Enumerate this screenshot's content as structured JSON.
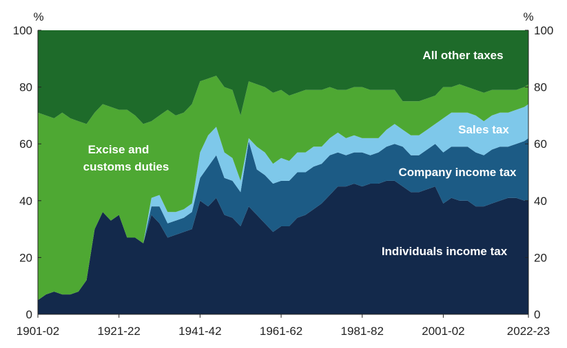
{
  "chart_data": {
    "type": "area",
    "stacked": true,
    "percent_stacked": true,
    "y_unit_left": "%",
    "y_unit_right": "%",
    "ylim": [
      0,
      100
    ],
    "y_ticks": [
      0,
      20,
      40,
      60,
      80,
      100
    ],
    "x_tick_labels": [
      "1901-02",
      "1921-22",
      "1941-42",
      "1961-62",
      "1981-82",
      "2001-02",
      "2022-23"
    ],
    "x_tick_years": [
      1901,
      1921,
      1941,
      1961,
      1981,
      2001,
      2022
    ],
    "x_range": [
      1901,
      2022
    ],
    "x": [
      1901,
      1903,
      1905,
      1907,
      1909,
      1911,
      1913,
      1915,
      1917,
      1919,
      1921,
      1923,
      1925,
      1927,
      1929,
      1931,
      1933,
      1935,
      1937,
      1939,
      1941,
      1943,
      1945,
      1947,
      1949,
      1951,
      1953,
      1955,
      1957,
      1959,
      1961,
      1963,
      1965,
      1967,
      1969,
      1971,
      1973,
      1975,
      1977,
      1979,
      1981,
      1983,
      1985,
      1987,
      1989,
      1991,
      1993,
      1995,
      1997,
      1999,
      2001,
      2003,
      2005,
      2007,
      2009,
      2011,
      2013,
      2015,
      2017,
      2019,
      2021,
      2022
    ],
    "series": [
      {
        "name": "Individuals income tax",
        "color": "#13294b",
        "values": [
          5,
          7,
          8,
          7,
          7,
          8,
          12,
          30,
          36,
          33,
          35,
          27,
          27,
          25,
          35,
          32,
          27,
          28,
          29,
          30,
          40,
          38,
          41,
          35,
          34,
          31,
          38,
          35,
          32,
          29,
          31,
          31,
          34,
          35,
          37,
          39,
          42,
          45,
          45,
          46,
          45,
          46,
          46,
          47,
          47,
          45,
          43,
          43,
          44,
          45,
          39,
          41,
          40,
          40,
          38,
          38,
          39,
          40,
          41,
          41,
          40,
          40
        ]
      },
      {
        "name": "Company income tax",
        "values": [
          0,
          0,
          0,
          0,
          0,
          0,
          0,
          0,
          0,
          0,
          0,
          0,
          0,
          0,
          3,
          6,
          5,
          5,
          5,
          6,
          8,
          14,
          15,
          13,
          13,
          12,
          23,
          16,
          17,
          17,
          16,
          16,
          16,
          15,
          15,
          14,
          14,
          12,
          11,
          11,
          12,
          10,
          11,
          12,
          13,
          14,
          13,
          13,
          14,
          15,
          18,
          18,
          19,
          19,
          19,
          18,
          19,
          19,
          18,
          19,
          21,
          22
        ],
        "color": "#1c5b85"
      },
      {
        "name": "Sales tax",
        "values": [
          0,
          0,
          0,
          0,
          0,
          0,
          0,
          0,
          0,
          0,
          0,
          0,
          0,
          0,
          3,
          4,
          4,
          3,
          3,
          3,
          9,
          11,
          10,
          9,
          8,
          4,
          1,
          8,
          8,
          7,
          8,
          7,
          7,
          7,
          7,
          6,
          6,
          7,
          6,
          6,
          5,
          6,
          5,
          6,
          7,
          6,
          7,
          7,
          7,
          7,
          12,
          12,
          12,
          12,
          13,
          12,
          12,
          12,
          12,
          12,
          12,
          12
        ],
        "color": "#7ec8ea"
      },
      {
        "name": "Excise and customs duties",
        "color": "#4ea833",
        "values": [
          66,
          63,
          61,
          64,
          62,
          60,
          55,
          41,
          38,
          40,
          37,
          45,
          43,
          42,
          27,
          28,
          36,
          34,
          34,
          35,
          25,
          20,
          18,
          23,
          24,
          23,
          20,
          22,
          23,
          25,
          24,
          23,
          21,
          22,
          20,
          20,
          18,
          15,
          17,
          17,
          18,
          17,
          17,
          14,
          12,
          10,
          12,
          12,
          11,
          10,
          11,
          9,
          10,
          9,
          9,
          10,
          9,
          8,
          8,
          7,
          7,
          7
        ]
      },
      {
        "name": "All other taxes",
        "color": "#1e6b2a",
        "values": [
          29,
          30,
          31,
          29,
          31,
          32,
          33,
          29,
          26,
          27,
          28,
          28,
          30,
          33,
          32,
          30,
          28,
          30,
          29,
          26,
          18,
          17,
          16,
          20,
          21,
          30,
          18,
          19,
          20,
          22,
          21,
          23,
          22,
          21,
          21,
          21,
          20,
          21,
          21,
          20,
          20,
          21,
          21,
          21,
          21,
          25,
          25,
          25,
          24,
          23,
          20,
          20,
          19,
          20,
          21,
          22,
          21,
          21,
          21,
          21,
          20,
          19
        ]
      }
    ],
    "annotations": {
      "all_other": "All other taxes",
      "excise_line1": "Excise and",
      "excise_line2": "customs duties",
      "sales": "Sales tax",
      "company": "Company income tax",
      "individuals": "Individuals income tax"
    },
    "annotation_colors": {
      "all_other": "#ffffff",
      "excise": "#ffffff",
      "sales": "#ffffff",
      "company": "#ffffff",
      "individuals": "#ffffff"
    },
    "axis_color": "#222222"
  }
}
